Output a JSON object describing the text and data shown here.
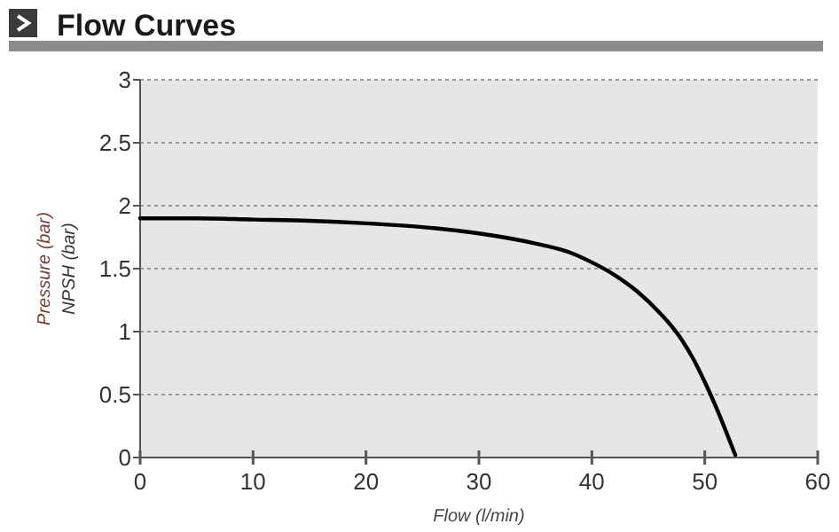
{
  "chart_data": {
    "type": "line",
    "title": "Flow Curves",
    "xlabel": "Flow (l/min)",
    "ylabel": "Pressure (bar)\nNPSH (bar)",
    "series": [
      {
        "color": "#000000",
        "x": [
          0,
          5,
          10,
          15,
          20,
          25,
          30,
          35,
          38,
          40,
          42,
          44,
          46,
          47,
          48,
          49,
          50,
          51,
          52,
          52.7
        ],
        "values": [
          1.9,
          1.9,
          1.89,
          1.88,
          1.86,
          1.83,
          1.78,
          1.7,
          1.63,
          1.55,
          1.45,
          1.32,
          1.15,
          1.05,
          0.93,
          0.78,
          0.6,
          0.4,
          0.18,
          0.02
        ]
      }
    ],
    "xlim": [
      0,
      60
    ],
    "xticks": [
      0,
      10,
      20,
      30,
      40,
      50,
      60
    ],
    "ylim": [
      0,
      3
    ],
    "yticks": [
      0,
      0.5,
      1,
      1.5,
      2,
      2.5,
      3
    ],
    "grid": "y",
    "marker": "none",
    "line_style": "solid"
  }
}
